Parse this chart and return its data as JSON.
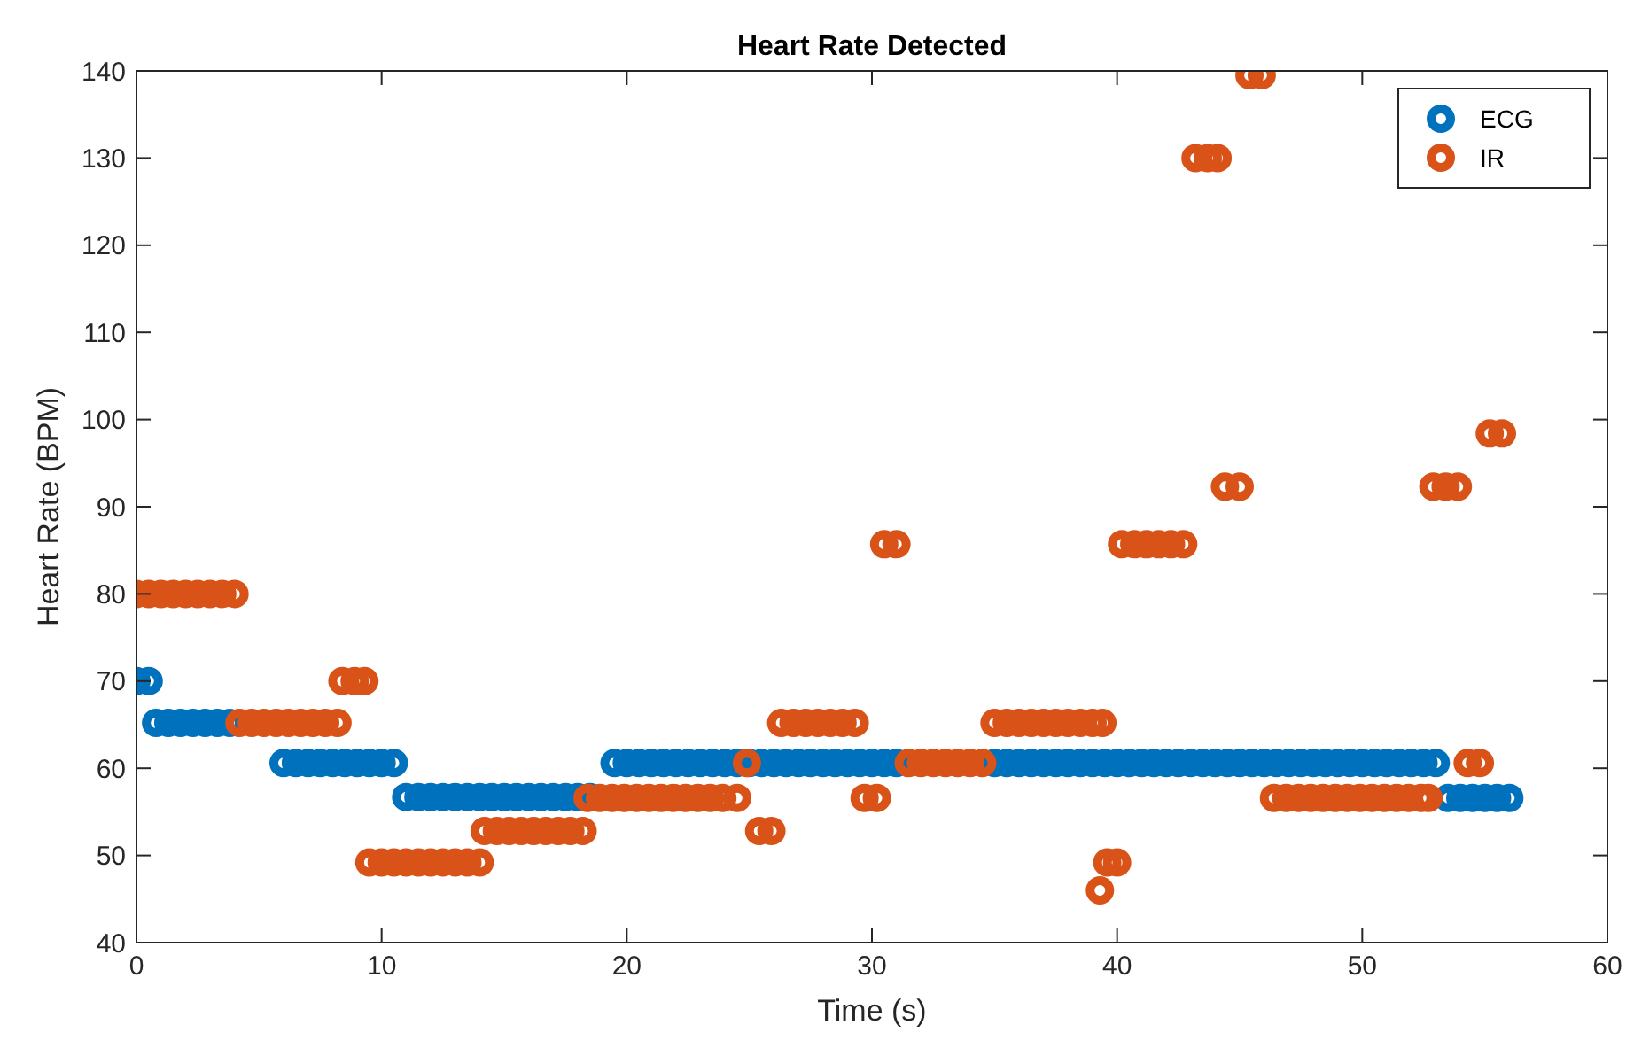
{
  "chart_data": {
    "type": "scatter",
    "title": "Heart Rate Detected",
    "xlabel": "Time (s)",
    "ylabel": "Heart Rate (BPM)",
    "xlim": [
      0,
      60
    ],
    "xticks": [
      0,
      10,
      20,
      30,
      40,
      50,
      60
    ],
    "ylim": [
      40,
      140
    ],
    "yticks": [
      40,
      50,
      60,
      70,
      80,
      90,
      100,
      110,
      120,
      130,
      140
    ],
    "legend": "top right",
    "marker": "circle",
    "grid": false,
    "series": [
      {
        "name": "ECG",
        "color": "#0072bd",
        "x": [
          0,
          0.5,
          0.8,
          1.3,
          1.8,
          2.3,
          2.8,
          3.3,
          3.8,
          6,
          6.5,
          7,
          7.5,
          8,
          8.5,
          9,
          9.5,
          10,
          10.5,
          11,
          11.5,
          12,
          12.5,
          13,
          13.5,
          14,
          14.5,
          15,
          15.5,
          16,
          16.5,
          17,
          17.5,
          18,
          18.5,
          19.5,
          20,
          20.5,
          21,
          21.5,
          22,
          22.5,
          23,
          23.5,
          24,
          24.5,
          25,
          25.5,
          26,
          26.5,
          27,
          27.5,
          28,
          28.5,
          29,
          29.5,
          30,
          30.5,
          31,
          35,
          35.5,
          36,
          36.5,
          37,
          37.5,
          38,
          38.5,
          39,
          39.5,
          40,
          40.5,
          41,
          41.5,
          42,
          42.5,
          43,
          43.5,
          44,
          44.5,
          45,
          45.5,
          46,
          46.5,
          47,
          47.5,
          48,
          48.5,
          49,
          49.5,
          50,
          50.5,
          51,
          51.5,
          52,
          52.5,
          53,
          53.5,
          54,
          54.5,
          55,
          55.5,
          56
        ],
        "values": [
          70,
          70,
          65.2,
          65.2,
          65.2,
          65.2,
          65.2,
          65.2,
          65.2,
          60.6,
          60.6,
          60.6,
          60.6,
          60.6,
          60.6,
          60.6,
          60.6,
          60.6,
          60.6,
          56.7,
          56.7,
          56.7,
          56.7,
          56.7,
          56.7,
          56.7,
          56.7,
          56.7,
          56.7,
          56.7,
          56.7,
          56.7,
          56.7,
          56.7,
          56.7,
          60.6,
          60.6,
          60.6,
          60.6,
          60.6,
          60.6,
          60.6,
          60.6,
          60.6,
          60.6,
          60.6,
          60.6,
          60.6,
          60.6,
          60.6,
          60.6,
          60.6,
          60.6,
          60.6,
          60.6,
          60.6,
          60.6,
          60.6,
          60.6,
          60.6,
          60.6,
          60.6,
          60.6,
          60.6,
          60.6,
          60.6,
          60.6,
          60.6,
          60.6,
          60.6,
          60.6,
          60.6,
          60.6,
          60.6,
          60.6,
          60.6,
          60.6,
          60.6,
          60.6,
          60.6,
          60.6,
          60.6,
          60.6,
          60.6,
          60.6,
          60.6,
          60.6,
          60.6,
          60.6,
          60.6,
          60.6,
          60.6,
          60.6,
          60.6,
          60.6,
          60.6,
          56.6,
          56.6,
          56.6,
          56.6,
          56.6,
          56.6
        ]
      },
      {
        "name": "IR",
        "color": "#d95319",
        "x": [
          0,
          0.5,
          1,
          1.5,
          2,
          2.5,
          3,
          3.5,
          4,
          4.2,
          4.7,
          5.2,
          5.7,
          6.2,
          6.7,
          7.2,
          7.7,
          8.2,
          8.4,
          8.9,
          9.3,
          9.5,
          10,
          10.5,
          11,
          11.5,
          12,
          12.5,
          13,
          13.5,
          14,
          14.2,
          14.7,
          15.2,
          15.7,
          16.2,
          16.7,
          17.2,
          17.7,
          18.2,
          18.4,
          18.9,
          19.4,
          19.9,
          20.4,
          20.9,
          21.4,
          21.9,
          22.4,
          22.9,
          23.4,
          23.9,
          24.5,
          24.9,
          25.4,
          25.9,
          26.3,
          26.8,
          27.3,
          27.8,
          28.3,
          28.8,
          29.3,
          29.7,
          30.2,
          30.5,
          31,
          31.5,
          32,
          32.5,
          33,
          33.5,
          34,
          34.5,
          35,
          35.5,
          36,
          36.5,
          37,
          37.5,
          38,
          38.5,
          39,
          39.4,
          39.3,
          39.6,
          40,
          40.2,
          40.7,
          41.2,
          41.7,
          42.2,
          42.7,
          43.2,
          43.7,
          44.1,
          44.4,
          45,
          45.4,
          45.9,
          46.4,
          46.9,
          47.4,
          47.9,
          48.4,
          48.9,
          49.4,
          49.9,
          50.4,
          50.9,
          51.4,
          51.9,
          52.4,
          52.7,
          52.9,
          53.4,
          53.9,
          54.3,
          54.8,
          55.2,
          55.7
        ],
        "values": [
          80,
          80,
          80,
          80,
          80,
          80,
          80,
          80,
          80,
          65.2,
          65.2,
          65.2,
          65.2,
          65.2,
          65.2,
          65.2,
          65.2,
          65.2,
          70,
          70,
          70,
          49.2,
          49.2,
          49.2,
          49.2,
          49.2,
          49.2,
          49.2,
          49.2,
          49.2,
          49.2,
          52.8,
          52.8,
          52.8,
          52.8,
          52.8,
          52.8,
          52.8,
          52.8,
          52.8,
          56.6,
          56.6,
          56.6,
          56.6,
          56.6,
          56.6,
          56.6,
          56.6,
          56.6,
          56.6,
          56.6,
          56.6,
          56.6,
          60.6,
          52.8,
          52.8,
          65.2,
          65.2,
          65.2,
          65.2,
          65.2,
          65.2,
          65.2,
          56.6,
          56.6,
          85.7,
          85.7,
          60.6,
          60.6,
          60.6,
          60.6,
          60.6,
          60.6,
          60.6,
          65.2,
          65.2,
          65.2,
          65.2,
          65.2,
          65.2,
          65.2,
          65.2,
          65.2,
          65.2,
          46,
          49.2,
          49.2,
          85.7,
          85.7,
          85.7,
          85.7,
          85.7,
          85.7,
          130,
          130,
          130,
          92.3,
          92.3,
          139.5,
          139.5,
          56.6,
          56.6,
          56.6,
          56.6,
          56.6,
          56.6,
          56.6,
          56.6,
          56.6,
          56.6,
          56.6,
          56.6,
          56.6,
          56.6,
          92.3,
          92.3,
          92.3,
          60.6,
          60.6,
          98.4,
          98.4
        ]
      }
    ]
  }
}
